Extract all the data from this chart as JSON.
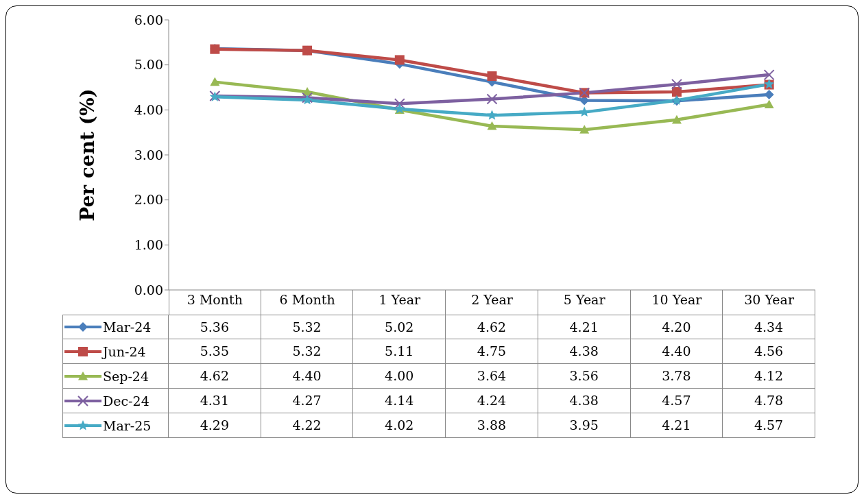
{
  "chart_data": {
    "type": "line",
    "ylabel": "Per cent (%)",
    "categories": [
      "3 Month",
      "6 Month",
      "1 Year",
      "2 Year",
      "5 Year",
      "10 Year",
      "30 Year"
    ],
    "series": [
      {
        "name": "Mar-24",
        "color": "#4a7ebb",
        "marker": "diamond",
        "values": [
          5.36,
          5.32,
          5.02,
          4.62,
          4.21,
          4.2,
          4.34
        ],
        "value_labels": [
          "5.36",
          "5.32",
          "5.02",
          "4.62",
          "4.21",
          "4.20",
          "4.34"
        ]
      },
      {
        "name": "Jun-24",
        "color": "#be4b48",
        "marker": "square",
        "values": [
          5.35,
          5.32,
          5.11,
          4.75,
          4.38,
          4.4,
          4.56
        ],
        "value_labels": [
          "5.35",
          "5.32",
          "5.11",
          "4.75",
          "4.38",
          "4.40",
          "4.56"
        ]
      },
      {
        "name": "Sep-24",
        "color": "#98b954",
        "marker": "triangle",
        "values": [
          4.62,
          4.4,
          4.0,
          3.64,
          3.56,
          3.78,
          4.12
        ],
        "value_labels": [
          "4.62",
          "4.40",
          "4.00",
          "3.64",
          "3.56",
          "3.78",
          "4.12"
        ]
      },
      {
        "name": "Dec-24",
        "color": "#7d60a0",
        "marker": "cross",
        "values": [
          4.31,
          4.27,
          4.14,
          4.24,
          4.38,
          4.57,
          4.78
        ],
        "value_labels": [
          "4.31",
          "4.27",
          "4.14",
          "4.24",
          "4.38",
          "4.57",
          "4.78"
        ]
      },
      {
        "name": "Mar-25",
        "color": "#46aac5",
        "marker": "star",
        "values": [
          4.29,
          4.22,
          4.02,
          3.88,
          3.95,
          4.21,
          4.57
        ],
        "value_labels": [
          "4.29",
          "4.22",
          "4.02",
          "3.88",
          "3.95",
          "4.21",
          "4.57"
        ]
      }
    ],
    "ylim": [
      0,
      6
    ],
    "yticks": [
      {
        "value": 0,
        "label": "0.00"
      },
      {
        "value": 1,
        "label": "1.00"
      },
      {
        "value": 2,
        "label": "2.00"
      },
      {
        "value": 3,
        "label": "3.00"
      },
      {
        "value": 4,
        "label": "4.00"
      },
      {
        "value": 5,
        "label": "5.00"
      },
      {
        "value": 6,
        "label": "6.00"
      }
    ],
    "grid": false,
    "legend": "bottom",
    "line_style": "solid"
  }
}
